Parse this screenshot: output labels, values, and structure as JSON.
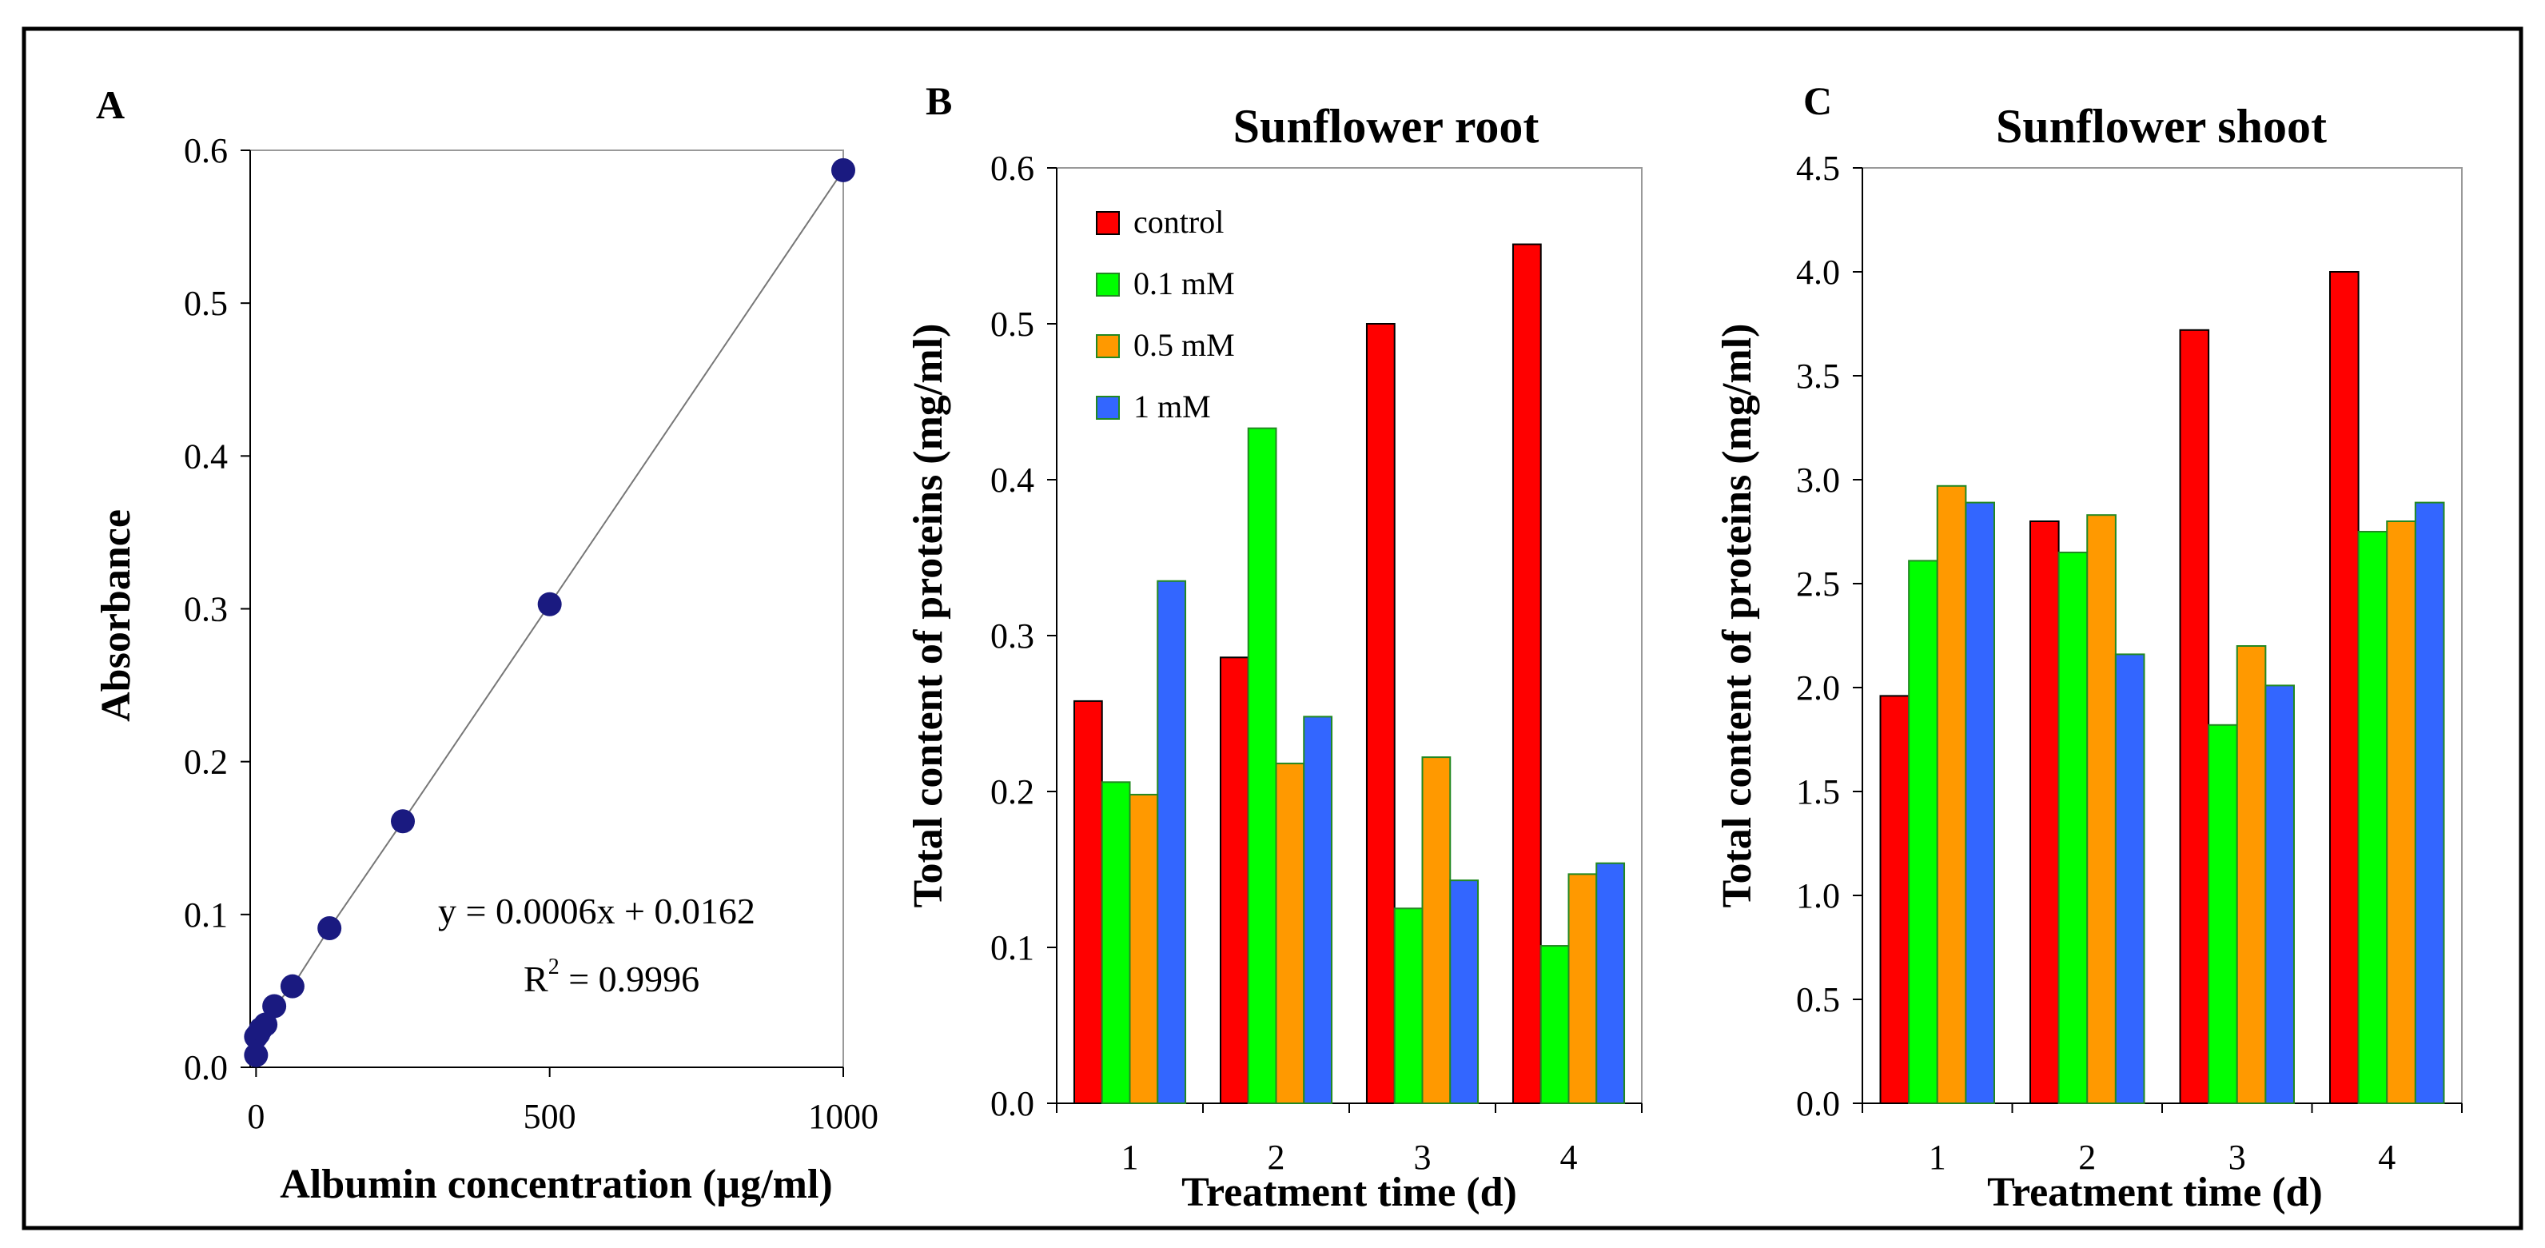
{
  "chart_data": [
    {
      "panel": "A",
      "type": "scatter",
      "title": "",
      "xlabel": "Albumin concentration (µg/ml)",
      "ylabel": "Absorbance",
      "xlim": [
        -10,
        1000
      ],
      "ylim": [
        0,
        0.6
      ],
      "xticks": [
        "0",
        "500",
        "1000"
      ],
      "yticks": [
        "0.0",
        "0.1",
        "0.2",
        "0.3",
        "0.4",
        "0.5",
        "0.6"
      ],
      "points": [
        {
          "x": 0,
          "y": 0.008
        },
        {
          "x": 0,
          "y": 0.02
        },
        {
          "x": 4,
          "y": 0.022
        },
        {
          "x": 8,
          "y": 0.025
        },
        {
          "x": 16,
          "y": 0.028
        },
        {
          "x": 31,
          "y": 0.04
        },
        {
          "x": 62,
          "y": 0.053
        },
        {
          "x": 125,
          "y": 0.091
        },
        {
          "x": 250,
          "y": 0.161
        },
        {
          "x": 500,
          "y": 0.303
        },
        {
          "x": 1000,
          "y": 0.587
        }
      ],
      "point_color": "#1a1a80",
      "equation": "y = 0.0006x + 0.0162",
      "r2_label": "R",
      "r2_sup": "2",
      "r2_value": " = 0.9996"
    },
    {
      "panel": "B",
      "type": "bar",
      "title": "Sunflower root",
      "xlabel": "Treatment time (d)",
      "ylabel": "Total content of proteins (mg/ml)",
      "categories": [
        "1",
        "2",
        "3",
        "4"
      ],
      "ylim": [
        0,
        0.6
      ],
      "yticks": [
        "0.0",
        "0.1",
        "0.2",
        "0.3",
        "0.4",
        "0.5",
        "0.6"
      ],
      "series": [
        {
          "name": "control",
          "color": "#ff0000",
          "values": [
            0.258,
            0.286,
            0.5,
            0.551
          ]
        },
        {
          "name": "0.1 mM",
          "color": "#00ff00",
          "values": [
            0.206,
            0.433,
            0.125,
            0.101
          ]
        },
        {
          "name": "0.5 mM",
          "color": "#ff9900",
          "values": [
            0.198,
            0.218,
            0.222,
            0.147
          ]
        },
        {
          "name": "1 mM",
          "color": "#3366ff",
          "values": [
            0.335,
            0.248,
            0.143,
            0.154
          ]
        }
      ],
      "legend_position": "top-left"
    },
    {
      "panel": "C",
      "type": "bar",
      "title": "Sunflower shoot",
      "xlabel": "Treatment time (d)",
      "ylabel": "Total content of proteins (mg/ml)",
      "categories": [
        "1",
        "2",
        "3",
        "4"
      ],
      "ylim": [
        0,
        4.5
      ],
      "yticks": [
        "0.0",
        "0.5",
        "1.0",
        "1.5",
        "2.0",
        "2.5",
        "3.0",
        "3.5",
        "4.0",
        "4.5"
      ],
      "series": [
        {
          "name": "control",
          "color": "#ff0000",
          "values": [
            1.96,
            2.8,
            3.72,
            4.0
          ]
        },
        {
          "name": "0.1 mM",
          "color": "#00ff00",
          "values": [
            2.61,
            2.65,
            1.82,
            2.75
          ]
        },
        {
          "name": "0.5 mM",
          "color": "#ff9900",
          "values": [
            2.97,
            2.83,
            2.2,
            2.8
          ]
        },
        {
          "name": "1 mM",
          "color": "#3366ff",
          "values": [
            2.89,
            2.16,
            2.01,
            2.89
          ]
        }
      ]
    }
  ]
}
